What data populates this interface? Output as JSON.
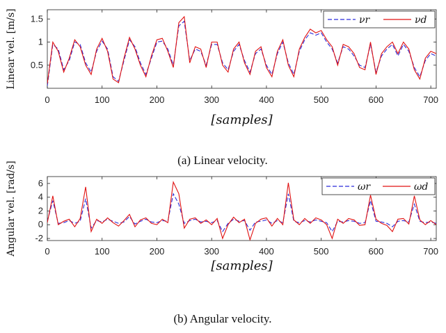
{
  "chart_data": [
    {
      "type": "line",
      "caption": "(a) Linear velocity.",
      "xlabel": "[samples]",
      "ylabel": "Linear vel. [m/s]",
      "xlim": [
        0,
        710
      ],
      "ylim": [
        0,
        1.7
      ],
      "xticks": [
        "0",
        "100",
        "200",
        "300",
        "400",
        "500",
        "600",
        "700"
      ],
      "yticks": [
        "0.5",
        "1",
        "1.5"
      ],
      "grid": false,
      "legend_position": "top-right",
      "x_step": 10,
      "series": [
        {
          "name": "νr",
          "style": "dashed",
          "color": "#2b2bd9",
          "values": [
            0.05,
            0.95,
            0.85,
            0.4,
            0.6,
            1.0,
            0.95,
            0.55,
            0.35,
            0.8,
            1.02,
            0.85,
            0.25,
            0.15,
            0.6,
            1.05,
            0.9,
            0.55,
            0.3,
            0.65,
            1.0,
            1.02,
            0.85,
            0.5,
            1.35,
            1.45,
            0.6,
            0.85,
            0.8,
            0.5,
            0.95,
            0.95,
            0.55,
            0.4,
            0.8,
            0.95,
            0.6,
            0.35,
            0.75,
            0.85,
            0.5,
            0.3,
            0.75,
            1.0,
            0.55,
            0.3,
            0.8,
            1.05,
            1.2,
            1.15,
            1.2,
            1.0,
            0.85,
            0.55,
            0.9,
            0.85,
            0.7,
            0.5,
            0.45,
            0.95,
            0.35,
            0.7,
            0.85,
            0.95,
            0.7,
            0.95,
            0.8,
            0.45,
            0.25,
            0.6,
            0.75,
            0.7
          ]
        },
        {
          "name": "νd",
          "style": "solid",
          "color": "#e01010",
          "values": [
            0.1,
            1.0,
            0.8,
            0.35,
            0.65,
            1.05,
            0.9,
            0.5,
            0.3,
            0.85,
            1.08,
            0.8,
            0.2,
            0.12,
            0.65,
            1.1,
            0.85,
            0.5,
            0.25,
            0.7,
            1.05,
            1.08,
            0.8,
            0.45,
            1.42,
            1.55,
            0.55,
            0.9,
            0.85,
            0.45,
            1.0,
            1.0,
            0.5,
            0.35,
            0.85,
            1.0,
            0.55,
            0.3,
            0.8,
            0.9,
            0.45,
            0.25,
            0.8,
            1.05,
            0.5,
            0.25,
            0.85,
            1.1,
            1.28,
            1.2,
            1.25,
            1.05,
            0.9,
            0.5,
            0.95,
            0.9,
            0.75,
            0.45,
            0.4,
            1.0,
            0.3,
            0.75,
            0.9,
            1.0,
            0.75,
            1.0,
            0.85,
            0.4,
            0.2,
            0.65,
            0.8,
            0.75
          ]
        }
      ]
    },
    {
      "type": "line",
      "caption": "(b) Angular velocity.",
      "xlabel": "[samples]",
      "ylabel": "Angular vel. [rad/s]",
      "xlim": [
        0,
        710
      ],
      "ylim": [
        -2.3,
        7
      ],
      "xticks": [
        "0",
        "100",
        "200",
        "300",
        "400",
        "500",
        "600",
        "700"
      ],
      "yticks": [
        "-2",
        "0",
        "2",
        "4",
        "6"
      ],
      "grid": false,
      "legend_position": "top-right",
      "x_step": 10,
      "series": [
        {
          "name": "ωr",
          "style": "dashed",
          "color": "#2b2bd9",
          "values": [
            0.5,
            3.5,
            0.2,
            0.3,
            0.6,
            0.2,
            0.5,
            3.8,
            -0.5,
            0.6,
            0.4,
            0.8,
            0.5,
            0.2,
            0.4,
            1.2,
            0.1,
            0.5,
            0.8,
            0.4,
            0.3,
            0.6,
            0.5,
            4.5,
            3.0,
            0.2,
            0.6,
            0.8,
            0.4,
            0.5,
            0.3,
            0.6,
            -1.0,
            0.2,
            0.8,
            0.5,
            0.6,
            -0.8,
            0.4,
            0.5,
            0.7,
            0.2,
            0.6,
            0.3,
            4.5,
            0.5,
            0.3,
            0.6,
            0.4,
            0.7,
            0.5,
            0.3,
            -1.0,
            0.5,
            0.4,
            0.6,
            0.5,
            0.2,
            0.3,
            3.5,
            0.5,
            0.4,
            0.2,
            -0.3,
            0.5,
            0.6,
            0.4,
            3.0,
            0.5,
            0.3,
            0.4,
            0.2
          ]
        },
        {
          "name": "ωd",
          "style": "solid",
          "color": "#e01010",
          "values": [
            0.3,
            4.2,
            0.0,
            0.5,
            0.8,
            -0.3,
            0.9,
            5.5,
            -1.0,
            0.8,
            0.2,
            1.0,
            0.3,
            -0.2,
            0.6,
            1.5,
            -0.3,
            0.7,
            1.0,
            0.2,
            0.0,
            0.8,
            0.3,
            6.2,
            4.5,
            -0.5,
            0.8,
            1.0,
            0.2,
            0.7,
            0.0,
            0.9,
            -2.0,
            0.0,
            1.1,
            0.3,
            0.8,
            -2.2,
            0.2,
            0.8,
            1.0,
            -0.2,
            0.9,
            0.0,
            6.1,
            0.7,
            0.0,
            0.9,
            0.2,
            1.0,
            0.7,
            0.0,
            -2.0,
            0.8,
            0.2,
            0.9,
            0.7,
            -0.1,
            0.0,
            4.3,
            0.8,
            0.2,
            -0.1,
            -1.0,
            0.8,
            0.9,
            0.1,
            4.2,
            0.7,
            0.0,
            0.6,
            0.0
          ]
        }
      ]
    }
  ]
}
